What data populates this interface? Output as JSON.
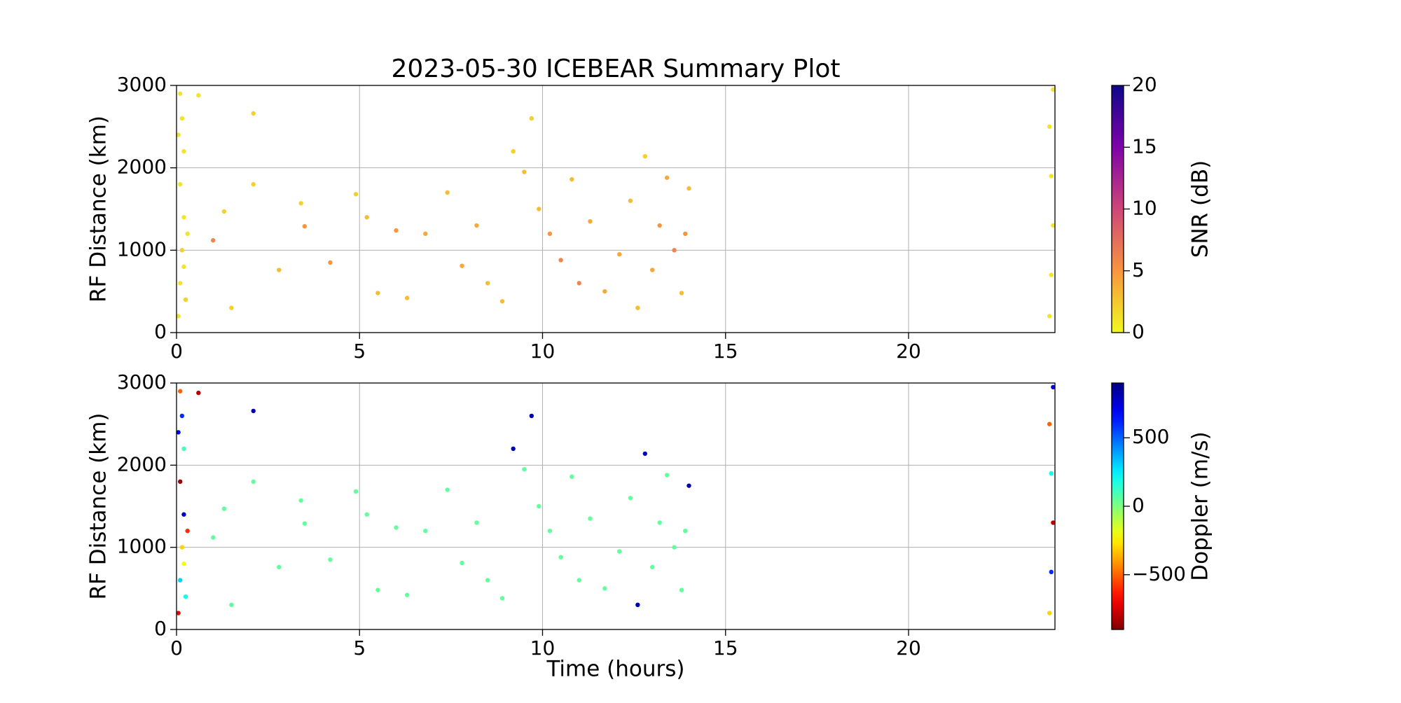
{
  "chart_data": [
    {
      "type": "scatter",
      "title": "2023-05-30 ICEBEAR Summary Plot",
      "ylabel": "RF Distance (km)",
      "xlim": [
        0,
        24
      ],
      "xticks": [
        0,
        5,
        10,
        15,
        20
      ],
      "ylim": [
        0,
        3000
      ],
      "yticks": [
        0,
        1000,
        2000,
        3000
      ],
      "grid": true,
      "colormap": "plasma_r",
      "clim": [
        0,
        20
      ],
      "cticks": [
        0,
        5,
        10,
        15,
        20
      ],
      "clabel": "SNR (dB)",
      "x": [
        0.05,
        0.1,
        0.15,
        0.2,
        0.1,
        0.2,
        0.15,
        0.1,
        0.25,
        0.3,
        0.05,
        0.2,
        0.6,
        1.0,
        1.3,
        1.5,
        2.1,
        2.1,
        2.8,
        3.4,
        3.5,
        4.2,
        4.9,
        5.2,
        5.5,
        6.0,
        6.3,
        6.8,
        7.4,
        7.8,
        8.2,
        8.5,
        8.9,
        9.2,
        9.5,
        9.7,
        9.9,
        10.2,
        10.5,
        10.8,
        11.0,
        11.3,
        11.7,
        12.1,
        12.4,
        12.6,
        12.8,
        13.0,
        13.2,
        13.4,
        13.6,
        13.8,
        13.9,
        14.0,
        23.85,
        23.9,
        23.95,
        23.9,
        23.85,
        23.95
      ],
      "y": [
        200,
        600,
        1000,
        1400,
        1800,
        2200,
        2600,
        2900,
        400,
        1200,
        2400,
        800,
        2880,
        1120,
        1470,
        300,
        2660,
        1800,
        760,
        1570,
        1290,
        850,
        1680,
        1400,
        480,
        1240,
        420,
        1200,
        1700,
        810,
        1300,
        600,
        380,
        2200,
        1950,
        2600,
        1500,
        1200,
        880,
        1860,
        600,
        1350,
        500,
        950,
        1600,
        300,
        2140,
        760,
        1300,
        1880,
        1000,
        480,
        1200,
        1750,
        200,
        700,
        1300,
        1900,
        2500,
        2950
      ],
      "c": [
        1,
        1,
        2,
        1,
        1,
        1,
        1,
        1,
        2,
        1,
        1,
        1,
        1,
        6,
        2,
        2,
        2,
        2,
        3,
        2,
        5,
        5,
        2,
        3,
        3,
        5,
        3,
        4,
        3,
        4,
        4,
        3,
        3,
        2,
        3,
        2,
        3,
        5,
        6,
        3,
        6,
        4,
        4,
        4,
        3,
        3,
        2,
        4,
        5,
        4,
        6,
        3,
        5,
        3,
        1,
        1,
        1,
        1,
        1,
        1
      ]
    },
    {
      "type": "scatter",
      "ylabel": "RF Distance (km)",
      "xlabel": "Time (hours)",
      "xlim": [
        0,
        24
      ],
      "xticks": [
        0,
        5,
        10,
        15,
        20
      ],
      "ylim": [
        0,
        3000
      ],
      "yticks": [
        0,
        1000,
        2000,
        3000
      ],
      "grid": true,
      "colormap": "jet_r",
      "clim": [
        -900,
        900
      ],
      "cticks": [
        {
          "value": -500,
          "label": "−500"
        },
        0,
        500
      ],
      "clabel": "Doppler (m/s)",
      "x": [
        0.05,
        0.1,
        0.15,
        0.2,
        0.1,
        0.2,
        0.15,
        0.1,
        0.25,
        0.3,
        0.05,
        0.2,
        0.6,
        1.0,
        1.3,
        1.5,
        2.1,
        2.1,
        2.8,
        3.4,
        3.5,
        4.2,
        4.9,
        5.2,
        5.5,
        6.0,
        6.3,
        6.8,
        7.4,
        7.8,
        8.2,
        8.5,
        8.9,
        9.2,
        9.5,
        9.7,
        9.9,
        10.2,
        10.5,
        10.8,
        11.0,
        11.3,
        11.7,
        12.1,
        12.4,
        12.6,
        12.8,
        13.0,
        13.2,
        13.4,
        13.6,
        13.8,
        13.9,
        14.0,
        23.85,
        23.9,
        23.95,
        23.9,
        23.85,
        23.95
      ],
      "y": [
        200,
        600,
        1000,
        1400,
        1800,
        2200,
        2600,
        2900,
        400,
        1200,
        2400,
        800,
        2880,
        1120,
        1470,
        300,
        2660,
        1800,
        760,
        1570,
        1290,
        850,
        1680,
        1400,
        480,
        1240,
        420,
        1200,
        1700,
        810,
        1300,
        600,
        380,
        2200,
        1950,
        2600,
        1500,
        1200,
        880,
        1860,
        600,
        1350,
        500,
        950,
        1600,
        300,
        2140,
        760,
        1300,
        1880,
        1000,
        480,
        1200,
        1750,
        200,
        700,
        1300,
        1900,
        2500,
        2950
      ],
      "c": [
        -700,
        300,
        -300,
        800,
        -850,
        100,
        600,
        -500,
        200,
        -600,
        700,
        -200,
        -800,
        50,
        50,
        50,
        800,
        50,
        50,
        50,
        50,
        50,
        50,
        50,
        50,
        50,
        50,
        50,
        50,
        50,
        50,
        50,
        50,
        800,
        50,
        800,
        50,
        50,
        50,
        50,
        50,
        50,
        50,
        50,
        50,
        800,
        800,
        50,
        50,
        50,
        50,
        50,
        50,
        800,
        -300,
        600,
        -800,
        200,
        -500,
        750
      ]
    }
  ]
}
